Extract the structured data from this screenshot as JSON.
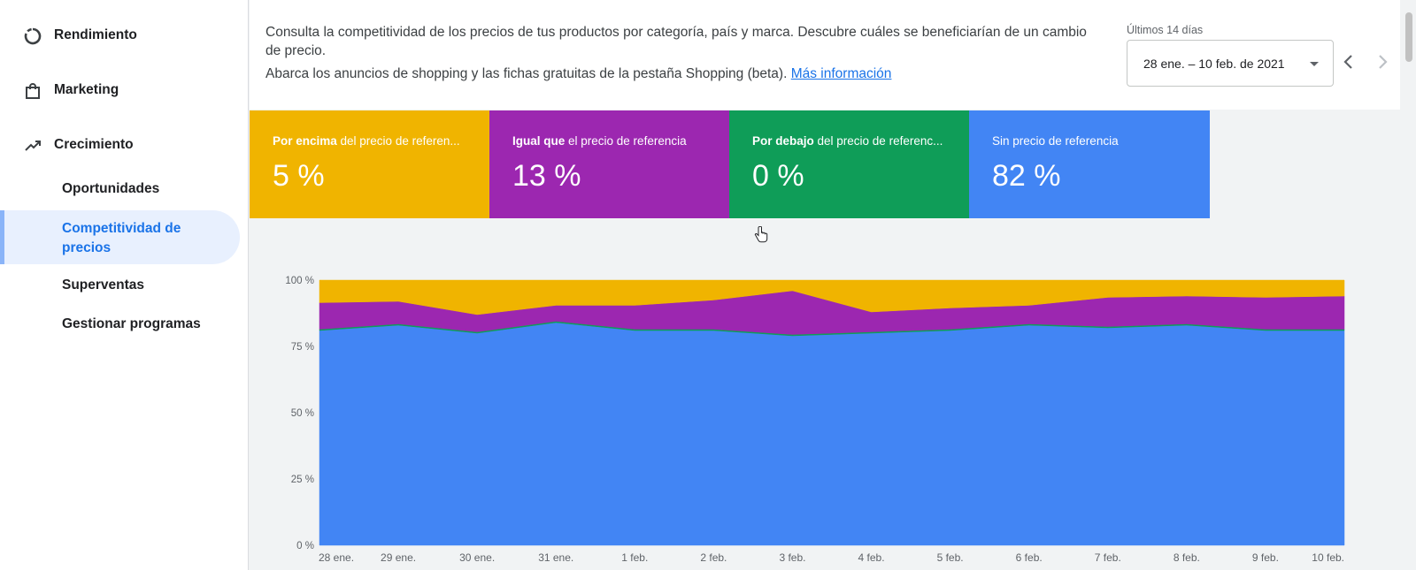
{
  "sidebar": {
    "sections": [
      {
        "label": "Rendimiento",
        "icon": "performance-icon"
      },
      {
        "label": "Marketing",
        "icon": "shopping-bag-icon"
      },
      {
        "label": "Crecimiento",
        "icon": "trending-up-icon"
      }
    ],
    "subitems": [
      {
        "label": "Oportunidades"
      },
      {
        "label": "Competitividad de precios",
        "active": true
      },
      {
        "label": "Superventas"
      },
      {
        "label": "Gestionar programas"
      }
    ]
  },
  "header": {
    "description": "Consulta la competitividad de los precios de tus productos por categoría, país y marca. Descubre cuáles se beneficiarían de un cambio de precio.",
    "scope_text": "Abarca los anuncios de shopping y las fichas gratuitas de la pestaña Shopping (beta).",
    "more_info_link": "Más información",
    "date_range_label": "Últimos 14 días",
    "date_range_value": "28 ene. – 10 feb. de 2021"
  },
  "tiles": [
    {
      "bold": "Por encima",
      "rest": " del precio de referen...",
      "value": "5 %",
      "color": "#f0b400"
    },
    {
      "bold": "Igual que",
      "rest": " el precio de referencia",
      "value": "13 %",
      "color": "#9c27b0"
    },
    {
      "bold": "Por debajo",
      "rest": " del precio de referenc...",
      "value": "0 %",
      "color": "#0f9d58"
    },
    {
      "bold": "",
      "rest": "Sin precio de referencia",
      "value": "82 %",
      "color": "#4285f4"
    }
  ],
  "chart_data": {
    "type": "area",
    "stacked": true,
    "categories": [
      "28 ene.",
      "29 ene.",
      "30 ene.",
      "31 ene.",
      "1 feb.",
      "2 feb.",
      "3 feb.",
      "4 feb.",
      "5 feb.",
      "6 feb.",
      "7 feb.",
      "8 feb.",
      "9 feb.",
      "10 feb."
    ],
    "y_ticks": [
      "0 %",
      "25 %",
      "50 %",
      "75 %",
      "100 %"
    ],
    "ylim": [
      0,
      100
    ],
    "series": [
      {
        "key": "sin",
        "color": "#4285f4",
        "values": [
          81,
          83,
          80,
          84,
          81,
          81,
          79,
          80,
          81,
          83,
          82,
          83,
          81,
          81
        ]
      },
      {
        "key": "debajo",
        "color": "#0f9d58",
        "values": [
          0.5,
          0.5,
          0.5,
          0.5,
          0.5,
          0.5,
          0.5,
          0.5,
          0.5,
          0.5,
          0.5,
          0.5,
          0.5,
          0.5
        ]
      },
      {
        "key": "igual",
        "color": "#9c27b0",
        "values": [
          10,
          8.5,
          6.5,
          6,
          9,
          11,
          16.5,
          7.5,
          8,
          7,
          11,
          10.5,
          12,
          12.5
        ]
      },
      {
        "key": "encima",
        "color": "#f0b400",
        "values": [
          8.5,
          8,
          13,
          9.5,
          9.5,
          7.5,
          4,
          12,
          10.5,
          9.5,
          6.5,
          6,
          6.5,
          6
        ]
      }
    ]
  }
}
